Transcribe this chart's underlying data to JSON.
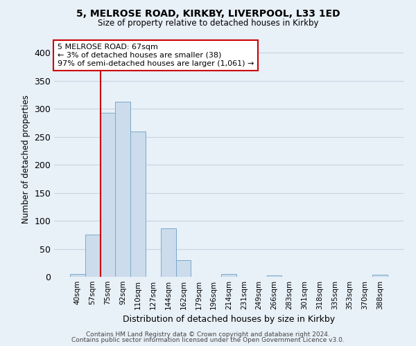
{
  "title1": "5, MELROSE ROAD, KIRKBY, LIVERPOOL, L33 1ED",
  "title2": "Size of property relative to detached houses in Kirkby",
  "xlabel": "Distribution of detached houses by size in Kirkby",
  "ylabel": "Number of detached properties",
  "categories": [
    "40sqm",
    "57sqm",
    "75sqm",
    "92sqm",
    "110sqm",
    "127sqm",
    "144sqm",
    "162sqm",
    "179sqm",
    "196sqm",
    "214sqm",
    "231sqm",
    "249sqm",
    "266sqm",
    "283sqm",
    "301sqm",
    "318sqm",
    "335sqm",
    "353sqm",
    "370sqm",
    "388sqm"
  ],
  "values": [
    5,
    75,
    293,
    313,
    260,
    0,
    86,
    30,
    0,
    0,
    5,
    0,
    0,
    3,
    0,
    0,
    0,
    0,
    0,
    0,
    4
  ],
  "bar_color": "#ccdcec",
  "bar_edge_color": "#7aaac8",
  "background_color": "#e8f0f8",
  "grid_color": "#c8d4e0",
  "annotation_box_text": "5 MELROSE ROAD: 67sqm\n← 3% of detached houses are smaller (38)\n97% of semi-detached houses are larger (1,061) →",
  "annotation_box_color": "#ffffff",
  "annotation_box_edge": "#cc0000",
  "vline_color": "#cc0000",
  "vline_x": 1.5,
  "ylim": [
    0,
    420
  ],
  "footer1": "Contains HM Land Registry data © Crown copyright and database right 2024.",
  "footer2": "Contains public sector information licensed under the Open Government Licence v3.0."
}
